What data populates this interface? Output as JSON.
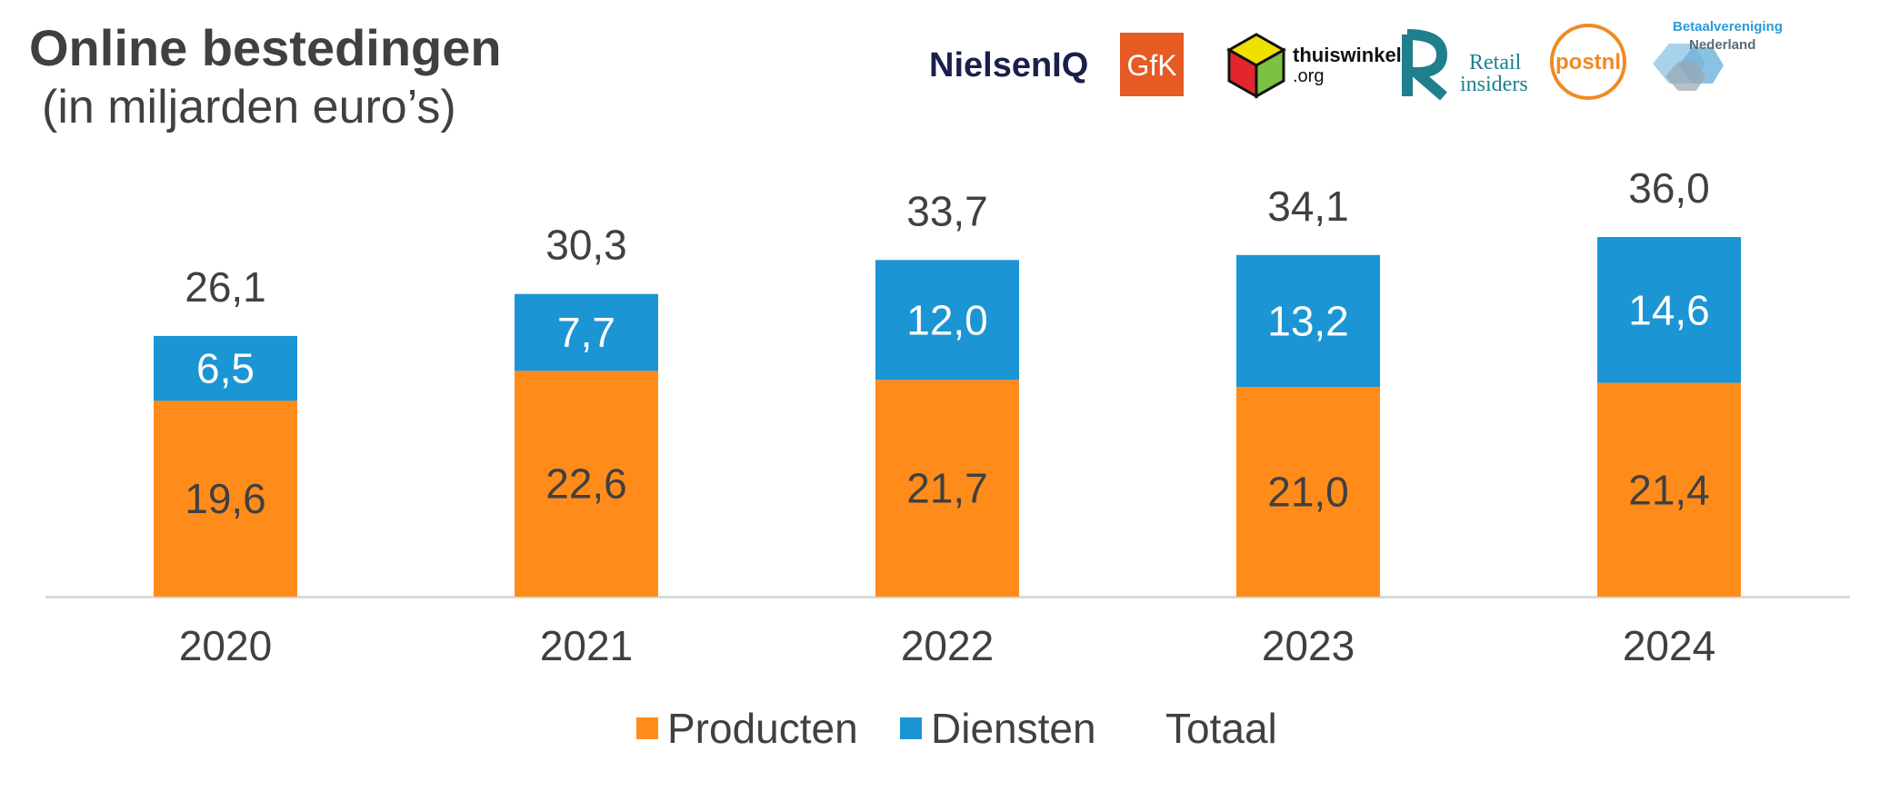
{
  "title": "Online bestedingen",
  "subtitle": "(in miljarden euro’s)",
  "logos": [
    {
      "name": "nielseniq-logo",
      "text": "NielsenIQ"
    },
    {
      "name": "gfk-logo",
      "text": "GfK"
    },
    {
      "name": "thuiswinkel-logo",
      "text": "thuiswinkel",
      "text2": ".org"
    },
    {
      "name": "retail-insiders-logo",
      "text": "Retail",
      "text2": "insiders"
    },
    {
      "name": "postnl-logo",
      "text": "postnl"
    },
    {
      "name": "betaalvereniging-logo",
      "text": "Betaalvereniging",
      "text2": "Nederland"
    }
  ],
  "colors": {
    "producten": "#FF8C1A",
    "diensten": "#1B95D4",
    "text": "#404040",
    "axis": "#D9D9D9"
  },
  "legend": {
    "producten": "Producten",
    "diensten": "Diensten",
    "totaal": "Totaal"
  },
  "chart_data": {
    "type": "bar",
    "stacked": true,
    "categories": [
      "2020",
      "2021",
      "2022",
      "2023",
      "2024"
    ],
    "series": [
      {
        "name": "Producten",
        "values": [
          19.6,
          22.6,
          21.7,
          21.0,
          21.4
        ],
        "labels": [
          "19,6",
          "22,6",
          "21,7",
          "21,0",
          "21,4"
        ]
      },
      {
        "name": "Diensten",
        "values": [
          6.5,
          7.7,
          12.0,
          13.2,
          14.6
        ],
        "labels": [
          "6,5",
          "7,7",
          "12,0",
          "13,2",
          "14,6"
        ]
      }
    ],
    "totals": {
      "name": "Totaal",
      "values": [
        26.1,
        30.3,
        33.7,
        34.1,
        36.0
      ],
      "labels": [
        "26,1",
        "30,3",
        "33,7",
        "34,1",
        "36,0"
      ]
    },
    "ylim": [
      0,
      36.0
    ],
    "grid": false,
    "legend_position": "bottom"
  }
}
